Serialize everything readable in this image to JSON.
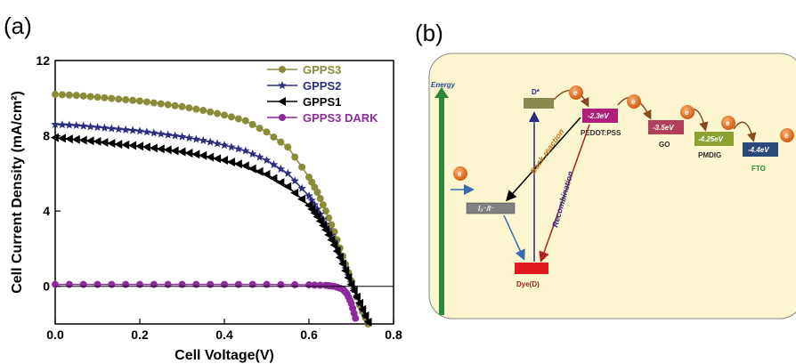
{
  "panels": {
    "a": "(a)",
    "b": "(b)"
  },
  "chart_data": {
    "type": "line",
    "title": "",
    "xlabel": "Cell Voltage(V)",
    "ylabel": "Cell Current  Density (mA/cm²)",
    "xlim": [
      0,
      0.8
    ],
    "ylim": [
      -2,
      12
    ],
    "xticks": [
      "0.0",
      "0.2",
      "0.4",
      "0.6",
      "0.8"
    ],
    "yticks": [
      "0",
      "4",
      "8",
      "12"
    ],
    "grid": false,
    "legend_position": "top-right",
    "series": [
      {
        "name": "GPPS3",
        "color": "#8a8c3a",
        "marker": "circle",
        "x": [
          0,
          0.05,
          0.1,
          0.15,
          0.2,
          0.25,
          0.3,
          0.35,
          0.4,
          0.45,
          0.5,
          0.55,
          0.6,
          0.62,
          0.64,
          0.66,
          0.68,
          0.7,
          0.72,
          0.74
        ],
        "y": [
          10.2,
          10.15,
          10.05,
          9.95,
          9.85,
          9.7,
          9.55,
          9.35,
          9.1,
          8.8,
          8.2,
          7.4,
          5.8,
          5.0,
          4.0,
          2.9,
          1.6,
          0.3,
          -1.0,
          -2.0
        ]
      },
      {
        "name": "GPPS2",
        "color": "#2e2e80",
        "marker": "star",
        "x": [
          0,
          0.05,
          0.1,
          0.15,
          0.2,
          0.25,
          0.3,
          0.35,
          0.4,
          0.45,
          0.5,
          0.55,
          0.6,
          0.62,
          0.64,
          0.66,
          0.68,
          0.7,
          0.72,
          0.74
        ],
        "y": [
          8.6,
          8.55,
          8.45,
          8.35,
          8.25,
          8.1,
          7.95,
          7.75,
          7.5,
          7.2,
          6.7,
          6.0,
          4.8,
          4.1,
          3.3,
          2.4,
          1.3,
          0.2,
          -0.9,
          -1.9
        ]
      },
      {
        "name": "GPPS1",
        "color": "#000000",
        "marker": "triangle-left",
        "x": [
          0,
          0.05,
          0.1,
          0.15,
          0.2,
          0.25,
          0.3,
          0.35,
          0.4,
          0.45,
          0.5,
          0.55,
          0.6,
          0.62,
          0.64,
          0.66,
          0.68,
          0.7,
          0.72,
          0.74
        ],
        "y": [
          7.9,
          7.8,
          7.7,
          7.55,
          7.45,
          7.3,
          7.15,
          6.95,
          6.7,
          6.4,
          5.95,
          5.3,
          4.3,
          3.7,
          3.0,
          2.2,
          1.2,
          0.1,
          -0.9,
          -1.9
        ]
      },
      {
        "name": "GPPS3 DARK",
        "color": "#8e2a9e",
        "marker": "circle",
        "x": [
          0,
          0.1,
          0.2,
          0.3,
          0.4,
          0.5,
          0.6,
          0.64,
          0.66,
          0.68,
          0.69,
          0.7,
          0.71
        ],
        "y": [
          0.1,
          0.1,
          0.1,
          0.1,
          0.1,
          0.1,
          0.08,
          0.05,
          0.0,
          -0.15,
          -0.4,
          -0.9,
          -1.7
        ]
      }
    ]
  },
  "diagram": {
    "energy_label": "Energy",
    "d_star_label": "D*",
    "electron_symbol": "e",
    "redox_label": "I₃⁻/I⁻",
    "dye_label": "Dye(D)",
    "back_reaction_label": "Back reaction",
    "recombination_label": "Recombination",
    "levels": [
      {
        "value": "-2.3eV",
        "label": "PEDOT:PSS",
        "color": "#b0207a"
      },
      {
        "value": "-3.5eV",
        "label": "GO",
        "color": "#b0405a"
      },
      {
        "value": "-4.25eV",
        "label": "PMDIG",
        "color": "#8aa030"
      },
      {
        "value": "-4.4eV",
        "label": "FTO",
        "color": "#2a4a7a"
      }
    ]
  }
}
